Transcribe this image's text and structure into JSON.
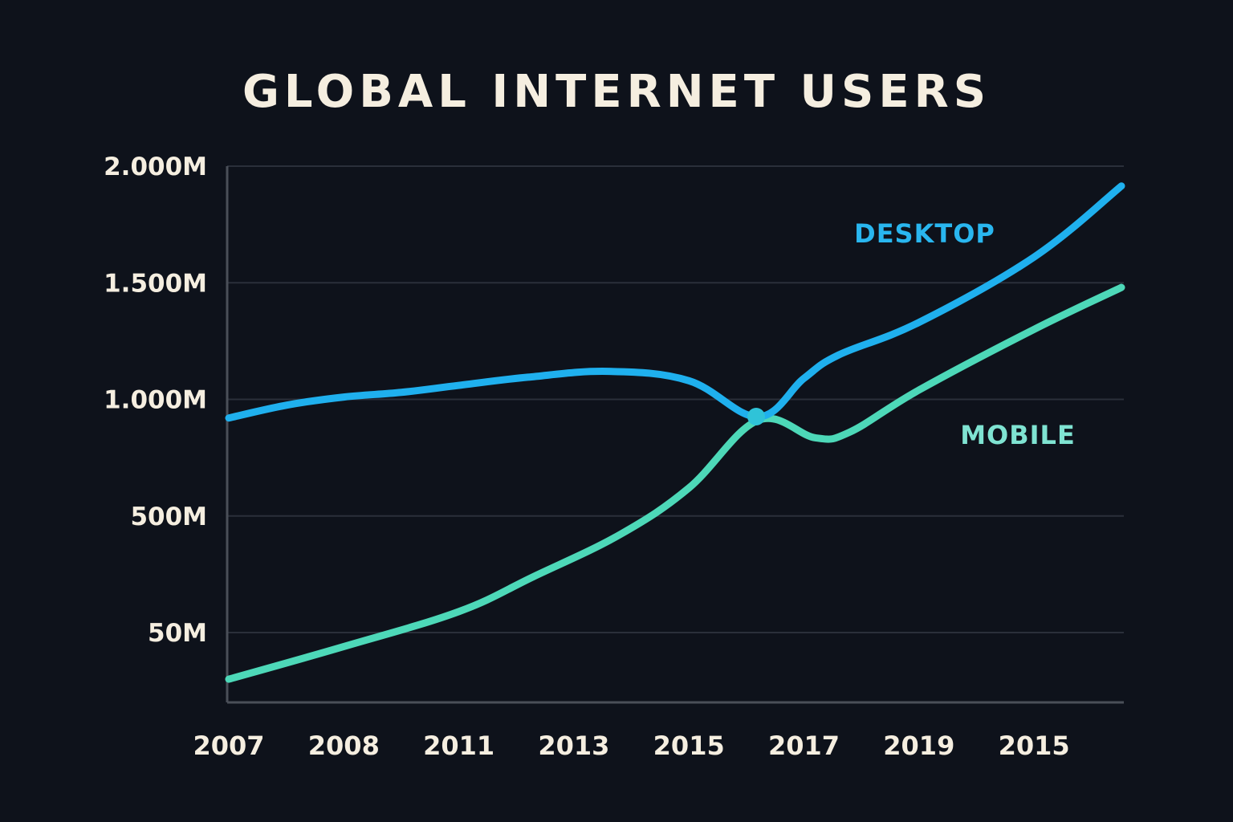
{
  "chart_data": {
    "type": "line",
    "title": "GLOBAL INTERNET USERS",
    "xlabel": "",
    "ylabel": "",
    "x": [
      "2007",
      "2008",
      "2011",
      "2013",
      "2015",
      "2017",
      "2019",
      "2015"
    ],
    "yticks": [
      {
        "label": "50M",
        "value": 0
      },
      {
        "label": "500M",
        "value": 500
      },
      {
        "label": "1.000M",
        "value": 1000
      },
      {
        "label": "1.500M",
        "value": 1500
      },
      {
        "label": "2.000M",
        "value": 2000
      }
    ],
    "ylim": [
      -300,
      2000
    ],
    "grid": true,
    "legend": "inline-labels",
    "notes": "Axis labels reproduced as printed. Year ticks are evenly spaced but non-sequential (final tick repeats 2015); y-gridlines are evenly spaced though labeled 50M,500M,... Values below are estimates interpolated from gridline positions in millions.",
    "series": [
      {
        "name": "DESKTOP",
        "color": "#1fb0ee",
        "label_color": "#29b6ef",
        "points": [
          {
            "x": 0,
            "y": 920
          },
          {
            "x": 0.5,
            "y": 975
          },
          {
            "x": 1,
            "y": 1010
          },
          {
            "x": 1.5,
            "y": 1030
          },
          {
            "x": 2,
            "y": 1060
          },
          {
            "x": 2.6,
            "y": 1095
          },
          {
            "x": 3.3,
            "y": 1120
          },
          {
            "x": 4,
            "y": 1080
          },
          {
            "x": 4.6,
            "y": 925
          },
          {
            "x": 5,
            "y": 1090
          },
          {
            "x": 5.3,
            "y": 1190
          },
          {
            "x": 6,
            "y": 1330
          },
          {
            "x": 7,
            "y": 1610
          },
          {
            "x": 7.76,
            "y": 1915
          }
        ]
      },
      {
        "name": "MOBILE",
        "color": "#4dd8b8",
        "label_color": "#7fe3d2",
        "points": [
          {
            "x": 0,
            "y": -200
          },
          {
            "x": 1,
            "y": -60
          },
          {
            "x": 2,
            "y": 90
          },
          {
            "x": 2.65,
            "y": 240
          },
          {
            "x": 3.4,
            "y": 420
          },
          {
            "x": 4,
            "y": 620
          },
          {
            "x": 4.6,
            "y": 910
          },
          {
            "x": 5.1,
            "y": 835
          },
          {
            "x": 5.4,
            "y": 860
          },
          {
            "x": 6,
            "y": 1040
          },
          {
            "x": 7,
            "y": 1300
          },
          {
            "x": 7.76,
            "y": 1480
          }
        ]
      }
    ]
  }
}
